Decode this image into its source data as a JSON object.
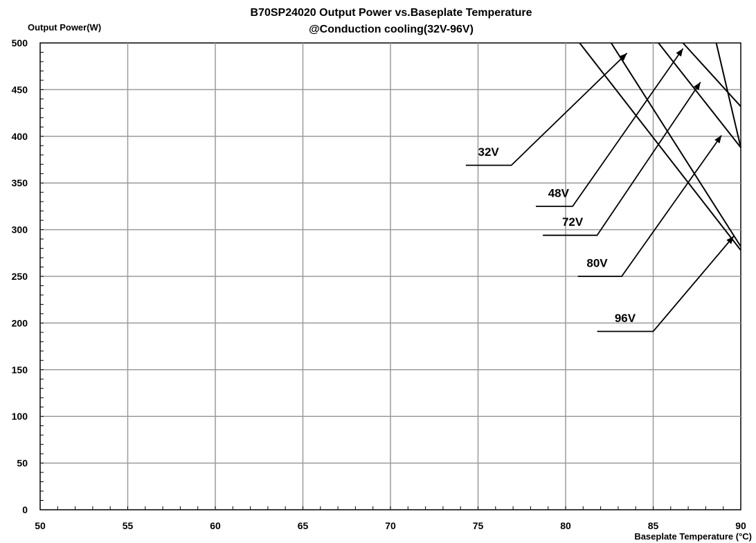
{
  "chart_data": {
    "type": "line",
    "title": "B70SP24020 Output Power vs.Baseplate Temperature",
    "subtitle": "@Conduction cooling(32V-96V)",
    "ylabel": "Output Power(W)",
    "xlabel": "Baseplate Temperature (°C)",
    "xlim": [
      50,
      90
    ],
    "ylim": [
      0,
      500
    ],
    "x_ticks": [
      50,
      55,
      60,
      65,
      70,
      75,
      80,
      85,
      90
    ],
    "y_ticks": [
      0,
      50,
      100,
      150,
      200,
      250,
      300,
      350,
      400,
      450,
      500
    ],
    "x_tick_labels": [
      "50",
      "55",
      "60",
      "65",
      "70",
      "75",
      "80",
      "85",
      "90"
    ],
    "y_tick_labels": [
      "0",
      "50",
      "100",
      "150",
      "200",
      "250",
      "300",
      "350",
      "400",
      "450",
      "500"
    ],
    "grid": true,
    "series": [
      {
        "name": "32V",
        "x": [
          80.8,
          90
        ],
        "y": [
          500,
          278
        ]
      },
      {
        "name": "48V",
        "x": [
          82.6,
          90
        ],
        "y": [
          500,
          282
        ]
      },
      {
        "name": "72V",
        "x": [
          85.3,
          90
        ],
        "y": [
          500,
          388
        ]
      },
      {
        "name": "80V",
        "x": [
          86.7,
          90
        ],
        "y": [
          500,
          432
        ]
      },
      {
        "name": "96V",
        "x": [
          88.6,
          90
        ],
        "y": [
          500,
          388
        ]
      }
    ],
    "annotations": [
      {
        "text": "32V",
        "text_x": 75.0,
        "text_y": 379,
        "leader": [
          [
            74.3,
            369
          ],
          [
            76.9,
            369
          ],
          [
            83.5,
            489
          ]
        ]
      },
      {
        "text": "48V",
        "text_x": 79.0,
        "text_y": 335,
        "leader": [
          [
            78.3,
            325
          ],
          [
            80.4,
            325
          ],
          [
            86.7,
            494
          ]
        ]
      },
      {
        "text": "72V",
        "text_x": 79.8,
        "text_y": 304,
        "leader": [
          [
            78.7,
            294
          ],
          [
            81.8,
            294
          ],
          [
            87.7,
            458
          ]
        ]
      },
      {
        "text": "80V",
        "text_x": 81.2,
        "text_y": 260,
        "leader": [
          [
            80.7,
            250
          ],
          [
            83.2,
            250
          ],
          [
            88.9,
            401
          ]
        ]
      },
      {
        "text": "96V",
        "text_x": 82.8,
        "text_y": 201,
        "leader": [
          [
            81.8,
            191
          ],
          [
            85.0,
            191
          ],
          [
            89.6,
            293
          ]
        ]
      }
    ]
  }
}
